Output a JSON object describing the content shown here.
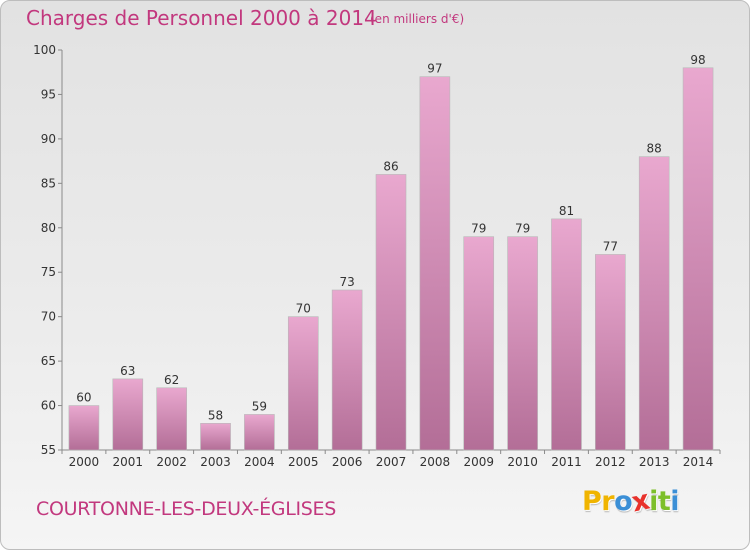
{
  "header": {
    "title": "Charges de Personnel 2000 à 2014",
    "subtitle": "(en milliers d'€)"
  },
  "footer": {
    "town": "COURTONNE-LES-DEUX-ÉGLISES",
    "logo_letters": [
      "P",
      "r",
      "o",
      "x",
      "i",
      "t",
      "i"
    ],
    "logo_colors": [
      "#f0b400",
      "#f0b400",
      "#3b8fd6",
      "#e8322c",
      "#7dbf2a",
      "#7dbf2a",
      "#3b8fd6"
    ]
  },
  "colors": {
    "bar_light": "#e9a8cf",
    "bar_dark": "#b36e97",
    "accent": "#c2387e"
  },
  "chart_data": {
    "type": "bar",
    "categories": [
      "2000",
      "2001",
      "2002",
      "2003",
      "2004",
      "2005",
      "2006",
      "2007",
      "2008",
      "2009",
      "2010",
      "2011",
      "2012",
      "2013",
      "2014"
    ],
    "values": [
      60,
      63,
      62,
      58,
      59,
      70,
      73,
      86,
      97,
      79,
      79,
      81,
      77,
      88,
      98
    ],
    "title": "Charges de Personnel 2000 à 2014",
    "xlabel": "",
    "ylabel": "",
    "ylim": [
      55,
      100
    ],
    "yticks": [
      55,
      60,
      65,
      70,
      75,
      80,
      85,
      90,
      95,
      100
    ],
    "grid": false,
    "data_labels": true
  }
}
